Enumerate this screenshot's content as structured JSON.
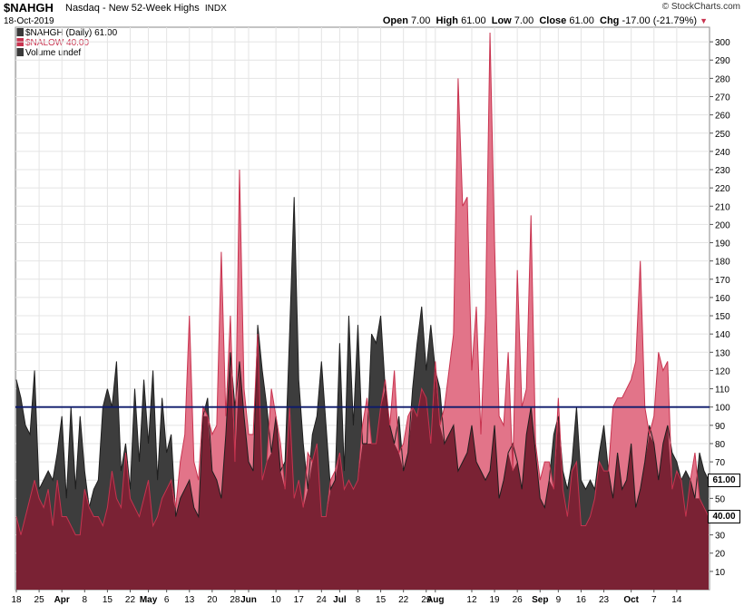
{
  "header": {
    "symbol": "$NAHGH",
    "description": "Nasdaq - New 52-Week Highs",
    "exchange": "INDX",
    "date": "18-Oct-2019",
    "open_label": "Open",
    "open": "7.00",
    "high_label": "High",
    "high": "61.00",
    "low_label": "Low",
    "low": "7.00",
    "close_label": "Close",
    "close": "61.00",
    "chg_label": "Chg",
    "chg": "-17.00 (-21.79%)",
    "chg_icon": "down-triangle-icon",
    "brand": "© StockCharts.com"
  },
  "legend": [
    {
      "text": "$NAHGH (Daily) 61.00",
      "color": "#3a3a3a"
    },
    {
      "text": "$NALOW 40.00",
      "color": "#c8334f"
    },
    {
      "text": "Volume undef",
      "color": "#3a3a3a"
    }
  ],
  "price_tags": {
    "highs": "61.00",
    "lows": "40.00"
  },
  "colors": {
    "highs_fill": "#3d3d3d",
    "lows_fill": "#e27489",
    "overlap_fill": "#7a2234",
    "reference_line": "#0d1a6b",
    "grid": "#e4e4e4"
  },
  "chart_data": {
    "type": "area",
    "ylim": [
      0,
      308
    ],
    "y_ticks": [
      10,
      20,
      30,
      40,
      50,
      60,
      70,
      80,
      90,
      100,
      110,
      120,
      130,
      140,
      150,
      160,
      170,
      180,
      190,
      200,
      210,
      220,
      230,
      240,
      250,
      260,
      270,
      280,
      290,
      300
    ],
    "reference_line": 100,
    "x_labels": [
      {
        "label": "18",
        "i": 0,
        "bold": false
      },
      {
        "label": "25",
        "i": 5,
        "bold": false
      },
      {
        "label": "Apr",
        "i": 10,
        "bold": true
      },
      {
        "label": "8",
        "i": 15,
        "bold": false
      },
      {
        "label": "15",
        "i": 20,
        "bold": false
      },
      {
        "label": "22",
        "i": 25,
        "bold": false
      },
      {
        "label": "May",
        "i": 29,
        "bold": true
      },
      {
        "label": "6",
        "i": 33,
        "bold": false
      },
      {
        "label": "13",
        "i": 38,
        "bold": false
      },
      {
        "label": "20",
        "i": 43,
        "bold": false
      },
      {
        "label": "28",
        "i": 48,
        "bold": false
      },
      {
        "label": "Jun",
        "i": 51,
        "bold": true
      },
      {
        "label": "10",
        "i": 57,
        "bold": false
      },
      {
        "label": "17",
        "i": 62,
        "bold": false
      },
      {
        "label": "24",
        "i": 67,
        "bold": false
      },
      {
        "label": "Jul",
        "i": 71,
        "bold": true
      },
      {
        "label": "8",
        "i": 75,
        "bold": false
      },
      {
        "label": "15",
        "i": 80,
        "bold": false
      },
      {
        "label": "22",
        "i": 85,
        "bold": false
      },
      {
        "label": "29",
        "i": 90,
        "bold": false
      },
      {
        "label": "Aug",
        "i": 92,
        "bold": true
      },
      {
        "label": "12",
        "i": 100,
        "bold": false
      },
      {
        "label": "19",
        "i": 105,
        "bold": false
      },
      {
        "label": "26",
        "i": 110,
        "bold": false
      },
      {
        "label": "Sep",
        "i": 115,
        "bold": true
      },
      {
        "label": "9",
        "i": 119,
        "bold": false
      },
      {
        "label": "16",
        "i": 124,
        "bold": false
      },
      {
        "label": "23",
        "i": 129,
        "bold": false
      },
      {
        "label": "Oct",
        "i": 135,
        "bold": true
      },
      {
        "label": "7",
        "i": 140,
        "bold": false
      },
      {
        "label": "14",
        "i": 145,
        "bold": false
      }
    ],
    "series": [
      {
        "name": "$NAHGH (Daily) 61.00",
        "values": [
          115,
          105,
          90,
          85,
          120,
          55,
          60,
          65,
          60,
          75,
          95,
          50,
          100,
          55,
          95,
          65,
          45,
          55,
          60,
          100,
          110,
          100,
          125,
          65,
          80,
          55,
          110,
          70,
          115,
          80,
          120,
          60,
          105,
          75,
          85,
          40,
          50,
          55,
          60,
          45,
          40,
          95,
          105,
          65,
          60,
          50,
          85,
          130,
          100,
          125,
          95,
          70,
          65,
          145,
          120,
          100,
          75,
          95,
          65,
          70,
          140,
          215,
          115,
          80,
          55,
          85,
          95,
          125,
          90,
          55,
          60,
          135,
          65,
          150,
          90,
          145,
          80,
          80,
          140,
          135,
          150,
          110,
          90,
          80,
          95,
          65,
          75,
          110,
          135,
          155,
          120,
          145,
          120,
          110,
          80,
          85,
          90,
          65,
          70,
          75,
          90,
          70,
          65,
          60,
          65,
          90,
          50,
          60,
          75,
          80,
          70,
          55,
          85,
          100,
          75,
          50,
          45,
          60,
          85,
          95,
          65,
          55,
          70,
          100,
          60,
          55,
          60,
          55,
          75,
          90,
          65,
          50,
          75,
          55,
          60,
          80,
          45,
          55,
          70,
          90,
          80,
          60,
          80,
          90,
          75,
          70,
          60,
          65,
          60,
          50,
          75,
          65,
          60
        ]
      },
      {
        "name": "$NALOW 40.00",
        "values": [
          40,
          30,
          40,
          50,
          60,
          50,
          45,
          55,
          35,
          60,
          40,
          40,
          35,
          30,
          30,
          55,
          45,
          40,
          40,
          35,
          45,
          65,
          50,
          45,
          75,
          50,
          45,
          40,
          50,
          60,
          35,
          40,
          50,
          55,
          60,
          45,
          70,
          85,
          150,
          70,
          60,
          100,
          95,
          85,
          90,
          185,
          95,
          150,
          70,
          230,
          110,
          85,
          85,
          140,
          60,
          70,
          110,
          95,
          80,
          55,
          100,
          50,
          60,
          45,
          75,
          70,
          80,
          40,
          40,
          60,
          65,
          75,
          55,
          60,
          55,
          60,
          90,
          105,
          80,
          80,
          100,
          115,
          90,
          120,
          75,
          80,
          95,
          100,
          95,
          110,
          105,
          80,
          125,
          90,
          100,
          120,
          140,
          280,
          210,
          215,
          120,
          155,
          85,
          150,
          305,
          190,
          95,
          90,
          130,
          65,
          175,
          100,
          110,
          205,
          80,
          60,
          70,
          70,
          55,
          105,
          55,
          40,
          65,
          70,
          35,
          35,
          40,
          50,
          70,
          65,
          65,
          100,
          105,
          105,
          110,
          115,
          125,
          180,
          100,
          85,
          95,
          130,
          120,
          125,
          55,
          65,
          60,
          40,
          60,
          75,
          50,
          45,
          40
        ]
      }
    ]
  }
}
